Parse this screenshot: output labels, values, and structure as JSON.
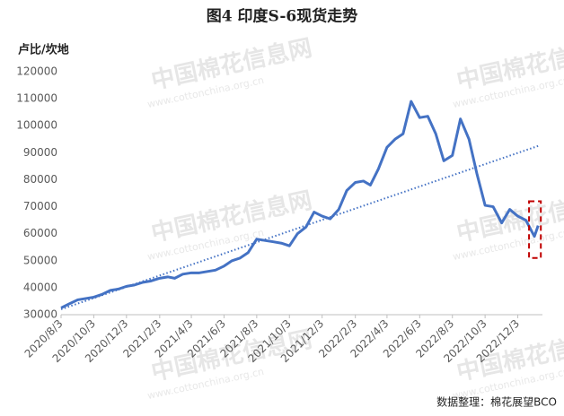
{
  "chart_data": {
    "type": "line",
    "title": "图4 印度S-6现货走势",
    "y_label": "卢比/坎地",
    "source": "数据整理：棉花展望BCO",
    "watermark": [
      "中国棉花信息网",
      "www.cottonchina.org.cn"
    ],
    "x": [
      "2020/8/3",
      "2020/8/18",
      "2020/9/3",
      "2020/9/18",
      "2020/10/3",
      "2020/10/18",
      "2020/11/3",
      "2020/11/18",
      "2020/12/3",
      "2020/12/18",
      "2021/1/3",
      "2021/1/18",
      "2021/2/3",
      "2021/2/18",
      "2021/3/3",
      "2021/3/18",
      "2021/4/3",
      "2021/4/18",
      "2021/5/3",
      "2021/5/18",
      "2021/6/3",
      "2021/6/18",
      "2021/7/3",
      "2021/7/18",
      "2021/8/3",
      "2021/8/18",
      "2021/9/3",
      "2021/9/18",
      "2021/10/3",
      "2021/10/18",
      "2021/11/3",
      "2021/11/18",
      "2021/12/3",
      "2021/12/18",
      "2022/1/3",
      "2022/1/18",
      "2022/2/3",
      "2022/2/18",
      "2022/3/3",
      "2022/3/18",
      "2022/4/3",
      "2022/4/18",
      "2022/5/3",
      "2022/5/18",
      "2022/6/3",
      "2022/6/18",
      "2022/7/3",
      "2022/7/18",
      "2022/8/3",
      "2022/8/18",
      "2022/9/3",
      "2022/9/18",
      "2022/10/3",
      "2022/10/18",
      "2022/11/3",
      "2022/11/18",
      "2022/12/3",
      "2022/12/18",
      "2023/1/3",
      "2023/1/10"
    ],
    "series": [
      {
        "color": "#4472c4",
        "values": [
          32500,
          34000,
          35500,
          36000,
          36500,
          37500,
          39000,
          39500,
          40500,
          41000,
          42000,
          42500,
          43500,
          44000,
          43500,
          45000,
          45500,
          45500,
          46000,
          46500,
          48000,
          50000,
          51000,
          53000,
          58000,
          57500,
          57000,
          56500,
          55500,
          60000,
          62500,
          68000,
          66500,
          65500,
          69000,
          76000,
          79000,
          79500,
          78000,
          84000,
          92000,
          95000,
          97000,
          109000,
          103000,
          103500,
          97000,
          87000,
          89000,
          102500,
          95000,
          82000,
          70500,
          70000,
          64000,
          69000,
          66500,
          65000,
          59000,
          63000
        ]
      }
    ],
    "trend": {
      "x": [
        "2020/8/3",
        "2023/1/10"
      ],
      "values": [
        32000,
        92500
      ],
      "color": "#4472c4"
    },
    "highlight": {
      "x": [
        "2022/12/24",
        "2023/1/15"
      ],
      "y": [
        51000,
        72000
      ],
      "color": "#c00000"
    },
    "xlim": [
      "2020/8/3",
      "2023/1/18"
    ],
    "xticks": [
      "2020/8/3",
      "2020/10/3",
      "2020/12/3",
      "2021/2/3",
      "2021/4/3",
      "2021/6/3",
      "2021/8/3",
      "2021/10/3",
      "2021/12/3",
      "2022/2/3",
      "2022/4/3",
      "2022/6/3",
      "2022/8/3",
      "2022/10/3",
      "2022/12/3"
    ],
    "ylim": [
      30000,
      120000
    ],
    "yticks": [
      30000,
      40000,
      50000,
      60000,
      70000,
      80000,
      90000,
      100000,
      110000,
      120000
    ]
  }
}
